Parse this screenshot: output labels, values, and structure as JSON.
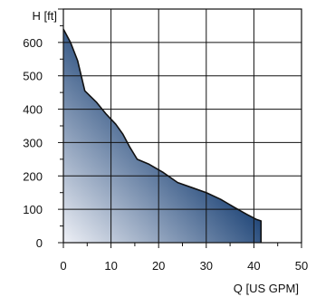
{
  "chart_data": {
    "type": "area",
    "title": "",
    "ylabel": "H [ft]",
    "xlabel": "Q [US GPM]",
    "xlim": [
      0,
      50
    ],
    "ylim": [
      0,
      700
    ],
    "x_ticks": [
      0,
      10,
      20,
      30,
      40,
      50
    ],
    "y_ticks": [
      0,
      100,
      200,
      300,
      400,
      500,
      600
    ],
    "grid": true,
    "series": [
      {
        "x": [
          0,
          1.5,
          3,
          4.5,
          7,
          9,
          11,
          12.5,
          14,
          15.5,
          18,
          21,
          24,
          27,
          30,
          33,
          36,
          38.5,
          40.5,
          41.5,
          41.5
        ],
        "values": [
          640,
          600,
          545,
          455,
          420,
          385,
          355,
          325,
          285,
          250,
          235,
          210,
          180,
          165,
          150,
          130,
          105,
          85,
          70,
          65,
          0
        ],
        "fill_gradient": [
          "#eef0f6",
          "#264b7c"
        ]
      }
    ]
  }
}
